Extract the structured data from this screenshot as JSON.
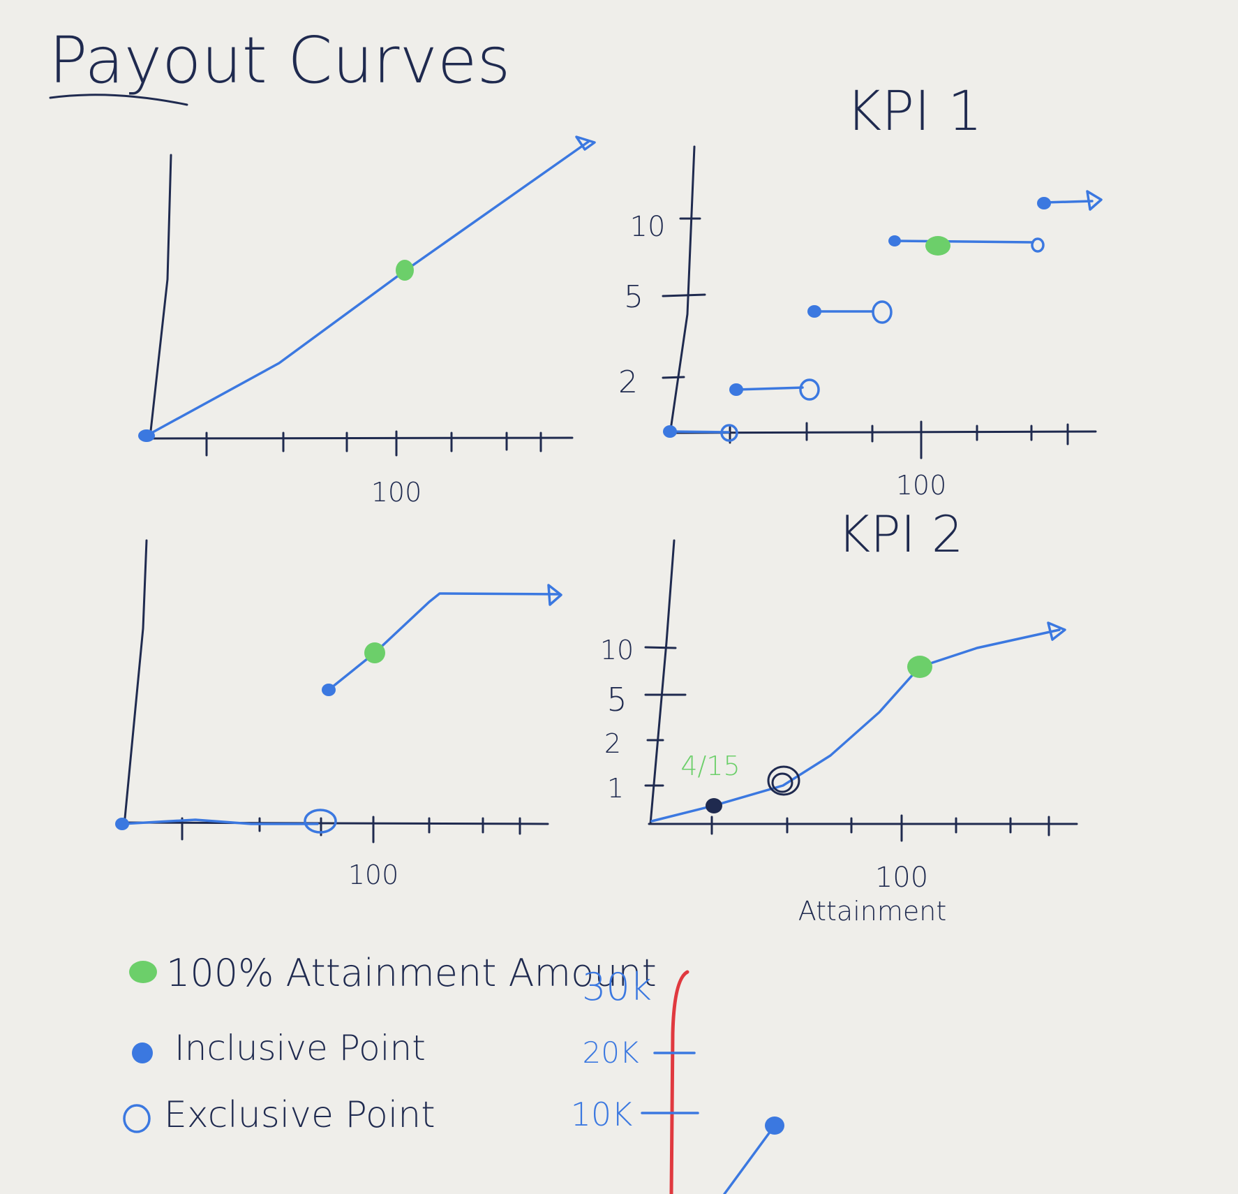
{
  "page_title": "Payout Curves",
  "colors": {
    "ink": "#1f2a4f",
    "curve": "#3b78e0",
    "target_point": "#6ccf6a",
    "axis_red": "#e0393f",
    "paper": "#efeeea"
  },
  "charts": {
    "top_left": {
      "xtick_label": "100"
    },
    "kpi1": {
      "title": "KPI 1",
      "ytick_labels": [
        "10",
        "5",
        "2"
      ],
      "xtick_label": "100"
    },
    "bottom_left": {
      "xtick_label": "100"
    },
    "kpi2": {
      "title": "KPI 2",
      "ytick_labels": [
        "10",
        "5",
        "2",
        "1"
      ],
      "xtick_label": "100",
      "xlabel": "Attainment",
      "annotation": "4/15"
    }
  },
  "legend": {
    "items": [
      {
        "label": "100% Attainment Amount",
        "marker": "filled-green"
      },
      {
        "label": "Inclusive Point",
        "marker": "filled-blue"
      },
      {
        "label": "Exclusive Point",
        "marker": "open-blue"
      }
    ]
  },
  "amount_axis": {
    "tick_labels": [
      "30k",
      "20K",
      "10K"
    ]
  }
}
